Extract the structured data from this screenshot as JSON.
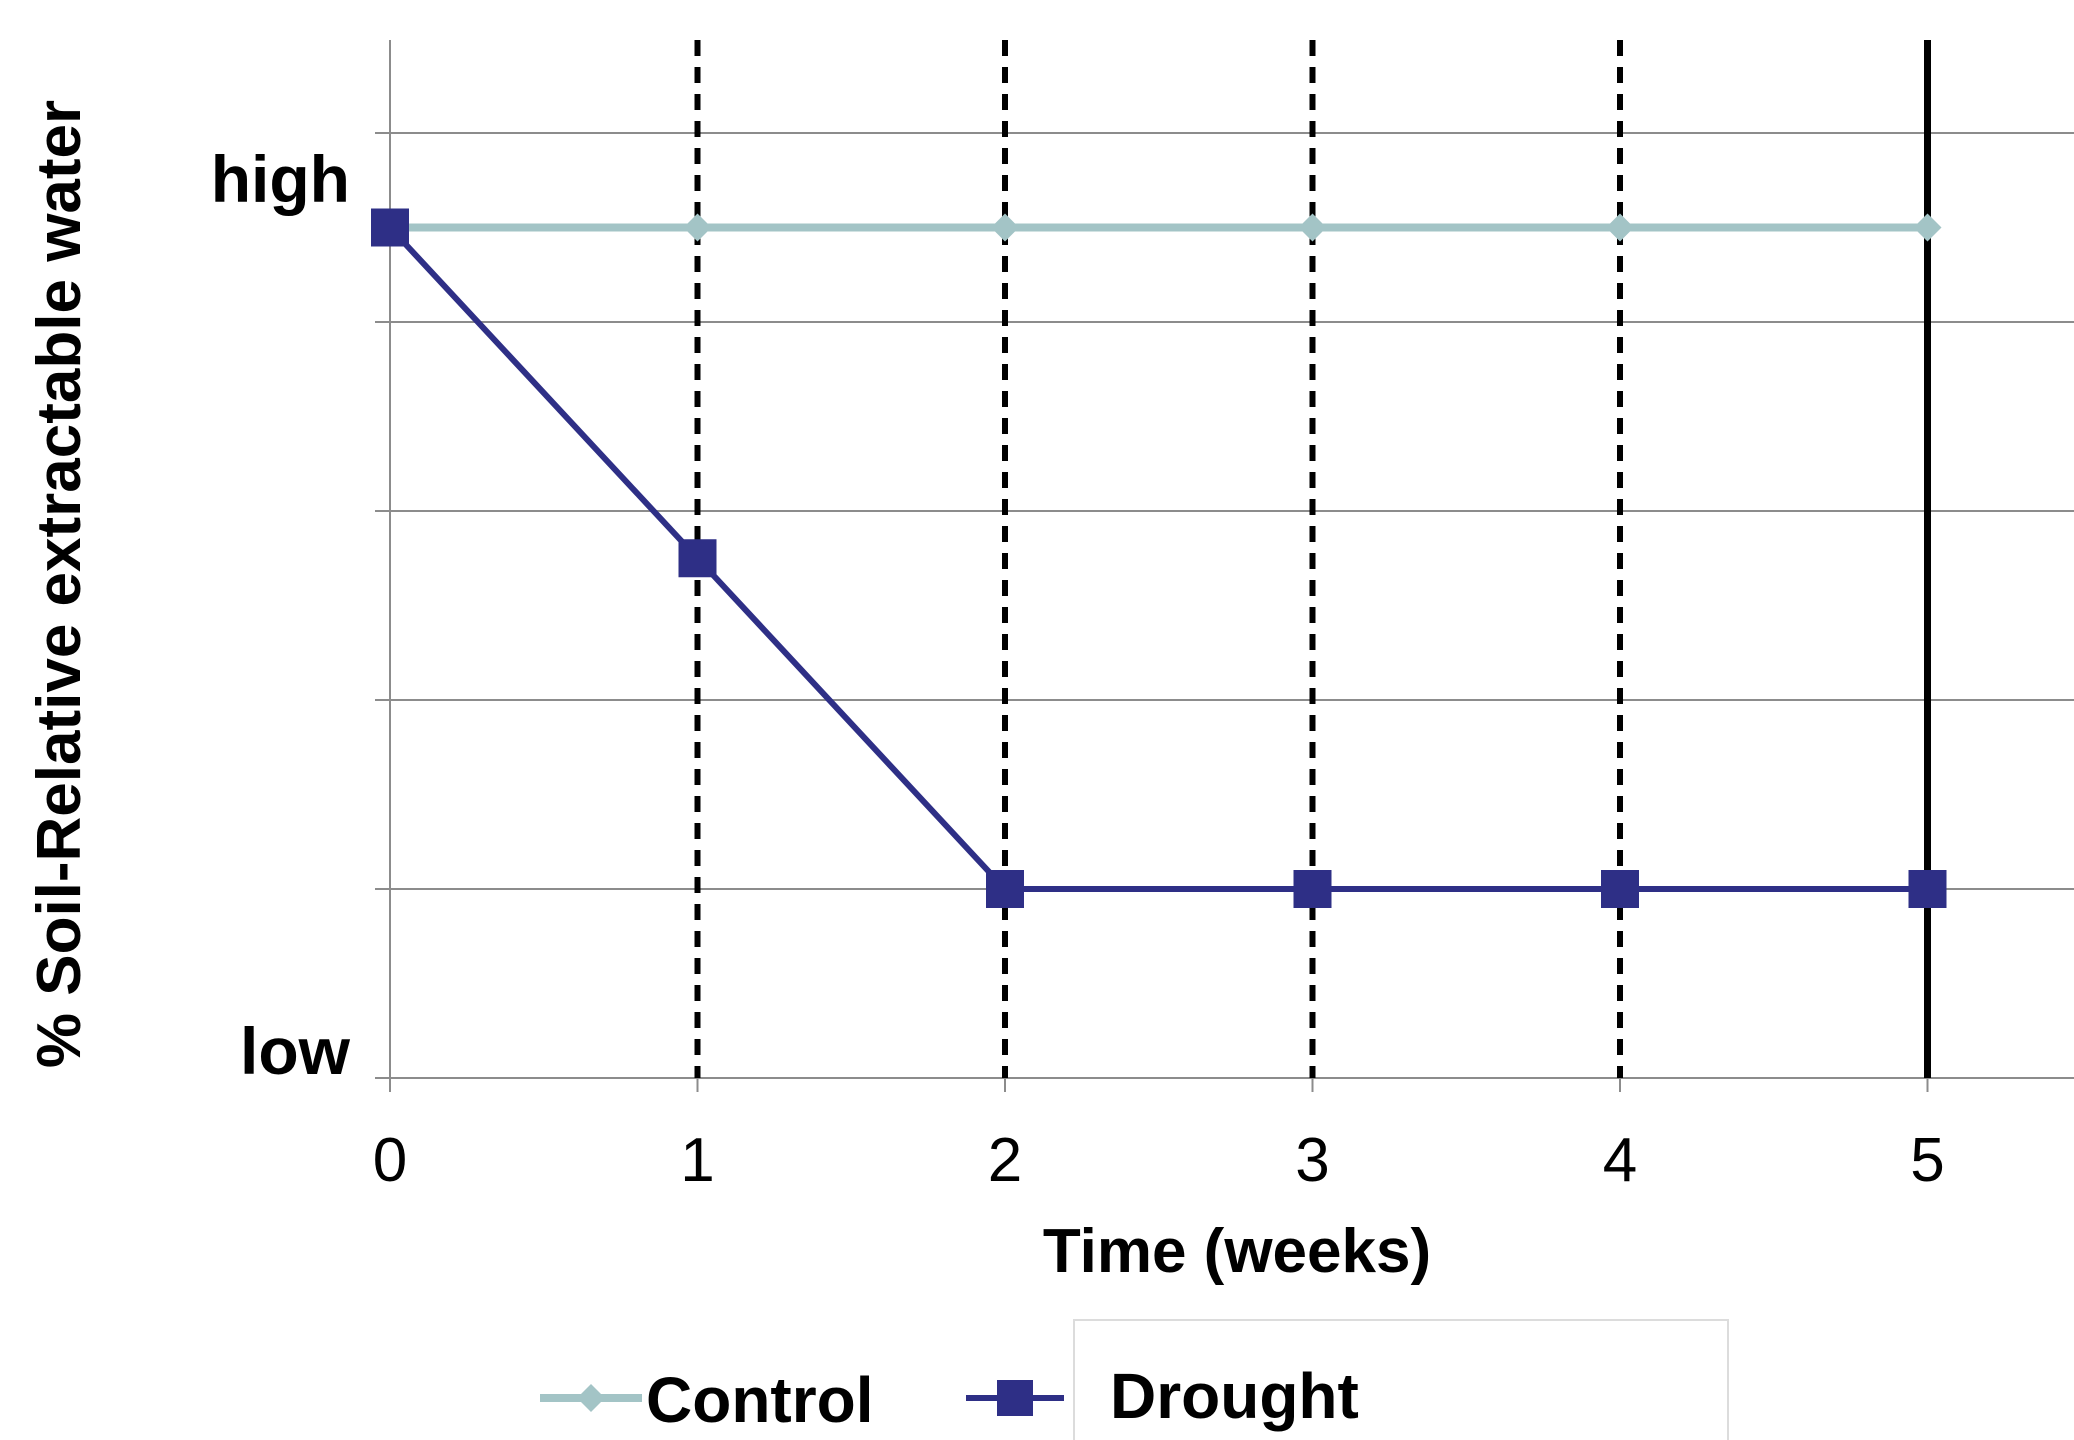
{
  "chart_data": {
    "type": "line",
    "xlabel": "Time (weeks)",
    "ylabel": "% Soil-Relative extractable water",
    "x": [
      0,
      1,
      2,
      3,
      4,
      5
    ],
    "xlim": [
      0,
      5.5
    ],
    "y_category_labels": {
      "top": "high",
      "bottom": "low"
    },
    "ylim": [
      0,
      5.5
    ],
    "y_gridlines": [
      0,
      1,
      2,
      3,
      4,
      5
    ],
    "grid": true,
    "series": [
      {
        "name": "Control",
        "marker": "diamond",
        "color": "#a3c4c6",
        "values": [
          4.5,
          4.5,
          4.5,
          4.5,
          4.5,
          4.5
        ]
      },
      {
        "name": "Drought",
        "marker": "square",
        "color": "#2e2f86",
        "values": [
          4.5,
          2.75,
          1.0,
          1.0,
          1.0,
          1.0
        ]
      }
    ],
    "vertical_markers": [
      {
        "x": 1,
        "style": "dashed"
      },
      {
        "x": 2,
        "style": "dashed"
      },
      {
        "x": 3,
        "style": "dashed"
      },
      {
        "x": 4,
        "style": "dashed"
      },
      {
        "x": 5,
        "style": "solid"
      }
    ],
    "legend": "bottom"
  }
}
